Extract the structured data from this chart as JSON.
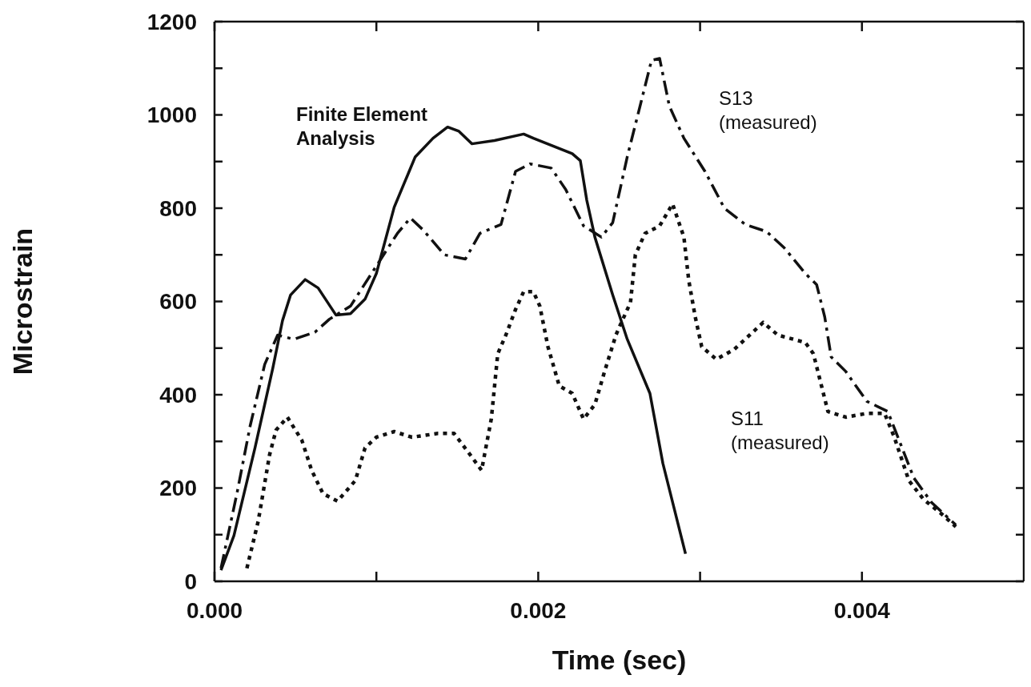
{
  "chart_data": {
    "type": "line",
    "xlabel": "Time (sec)",
    "ylabel": "Microstrain",
    "xlim": [
      0,
      0.005
    ],
    "ylim": [
      0,
      1200
    ],
    "xticks": [
      {
        "value": 0,
        "label": "0.000"
      },
      {
        "value": 0.001,
        "label": null
      },
      {
        "value": 0.002,
        "label": "0.002"
      },
      {
        "value": 0.003,
        "label": null
      },
      {
        "value": 0.004,
        "label": "0.004"
      }
    ],
    "yticks": [
      0,
      {
        "value": 100,
        "label": null
      },
      200,
      {
        "value": 300,
        "label": null
      },
      400,
      {
        "value": 500,
        "label": null
      },
      600,
      {
        "value": 700,
        "label": null
      },
      800,
      {
        "value": 900,
        "label": null
      },
      1000,
      {
        "value": 1100,
        "label": null
      },
      1200
    ],
    "legend": false,
    "marker": "none",
    "series": [
      {
        "name": "Finite Element Analysis",
        "color": "#111111",
        "line_style": "solid",
        "x": [
          4e-05,
          0.00012,
          0.00025,
          0.00036,
          0.00042,
          0.00047,
          0.00056,
          0.00064,
          0.00075,
          0.00084,
          0.00093,
          0.001,
          0.00111,
          0.00124,
          0.00135,
          0.00144,
          0.00151,
          0.00159,
          0.00173,
          0.00191,
          0.00197,
          0.00221,
          0.00226,
          0.0023,
          0.00235,
          0.00246,
          0.00255,
          0.00269,
          0.00277,
          0.00291
        ],
        "values": [
          24,
          98,
          286,
          457,
          559,
          614,
          647,
          629,
          571,
          574,
          605,
          660,
          802,
          910,
          950,
          974,
          965,
          938,
          945,
          959,
          950,
          917,
          902,
          817,
          738,
          614,
          519,
          403,
          253,
          59
        ]
      },
      {
        "name": "S13 (measured)",
        "color": "#111111",
        "line_style": "dashed",
        "x": [
          4e-05,
          0.00014,
          0.00022,
          0.00031,
          0.00039,
          0.00049,
          0.00062,
          0.00071,
          0.00084,
          0.001,
          0.00113,
          0.00121,
          0.00129,
          0.00142,
          0.00155,
          0.00164,
          0.00177,
          0.00186,
          0.00195,
          0.00208,
          0.00217,
          0.00228,
          0.00239,
          0.00246,
          0.00255,
          0.00264,
          0.0027,
          0.00275,
          0.00281,
          0.0029,
          0.00303,
          0.00315,
          0.00328,
          0.00341,
          0.00352,
          0.00365,
          0.00372,
          0.00377,
          0.00381,
          0.0039,
          0.00403,
          0.00416,
          0.00423,
          0.00432,
          0.00443,
          0.00458
        ],
        "values": [
          28,
          191,
          333,
          465,
          528,
          519,
          534,
          562,
          590,
          676,
          746,
          779,
          753,
          700,
          691,
          746,
          765,
          879,
          895,
          886,
          840,
          762,
          738,
          769,
          910,
          1034,
          1117,
          1121,
          1019,
          950,
          879,
          800,
          765,
          750,
          715,
          660,
          636,
          567,
          481,
          450,
          386,
          364,
          302,
          222,
          169,
          121
        ]
      },
      {
        "name": "S11 (measured)",
        "color": "#111111",
        "line_style": "dotted",
        "x": [
          0.0002,
          0.00027,
          0.00034,
          0.00038,
          0.00045,
          0.00054,
          0.0006,
          0.00067,
          0.00076,
          0.00087,
          0.00093,
          0.001,
          0.00111,
          0.00122,
          0.00138,
          0.00148,
          0.00158,
          0.00165,
          0.00171,
          0.00175,
          0.0018,
          0.00186,
          0.00191,
          0.00197,
          0.00201,
          0.00206,
          0.00213,
          0.00221,
          0.00228,
          0.00235,
          0.00241,
          0.00248,
          0.00251,
          0.00257,
          0.0026,
          0.00266,
          0.00275,
          0.00283,
          0.0029,
          0.00293,
          0.00297,
          0.00301,
          0.0031,
          0.00321,
          0.00339,
          0.00348,
          0.00365,
          0.0037,
          0.00379,
          0.0039,
          0.00403,
          0.00414,
          0.0042,
          0.00429,
          0.00438,
          0.00449,
          0.00458
        ],
        "values": [
          28,
          129,
          271,
          324,
          352,
          302,
          238,
          188,
          172,
          216,
          286,
          309,
          321,
          309,
          317,
          317,
          271,
          238,
          348,
          488,
          528,
          583,
          621,
          621,
          590,
          503,
          419,
          403,
          348,
          379,
          450,
          528,
          552,
          598,
          700,
          746,
          762,
          809,
          738,
          645,
          567,
          503,
          476,
          497,
          555,
          528,
          512,
          488,
          364,
          352,
          360,
          360,
          309,
          216,
          176,
          145,
          117
        ]
      }
    ]
  }
}
